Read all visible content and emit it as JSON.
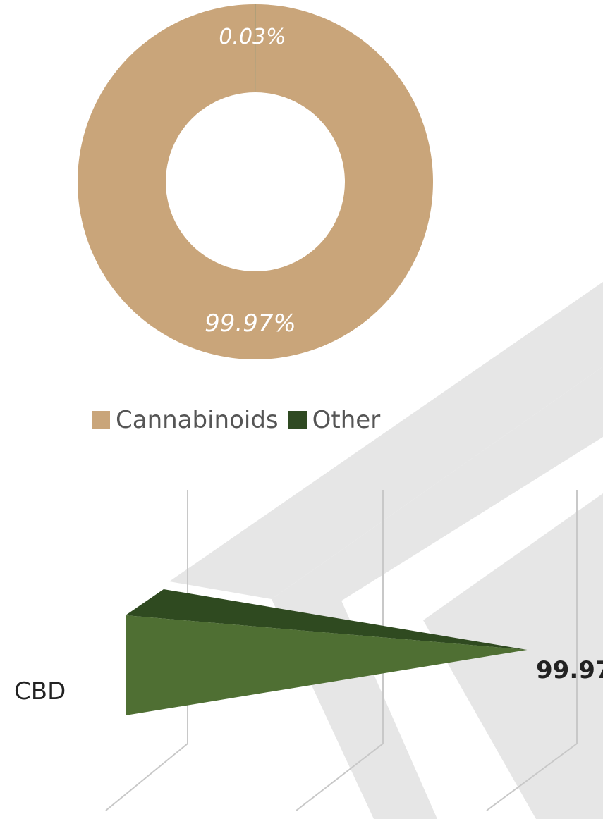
{
  "chart_data": [
    {
      "type": "pie",
      "variant": "donut",
      "slices": [
        {
          "label": "Cannabinoids",
          "value": 99.97,
          "display": "99.97%",
          "color": "#c9a57a"
        },
        {
          "label": "Other",
          "value": 0.03,
          "display": "0.03%",
          "color": "#3e5a2a"
        }
      ],
      "legend": {
        "placement": "bottom",
        "entries": [
          "Cannabinoids",
          "Other"
        ]
      }
    },
    {
      "type": "bar",
      "orientation": "horizontal",
      "style": "3d-pyramid",
      "categories": [
        "CBD"
      ],
      "values": [
        99.97
      ],
      "data_label": "99.97",
      "color": "#4a6b2e",
      "gridlines": true
    }
  ]
}
